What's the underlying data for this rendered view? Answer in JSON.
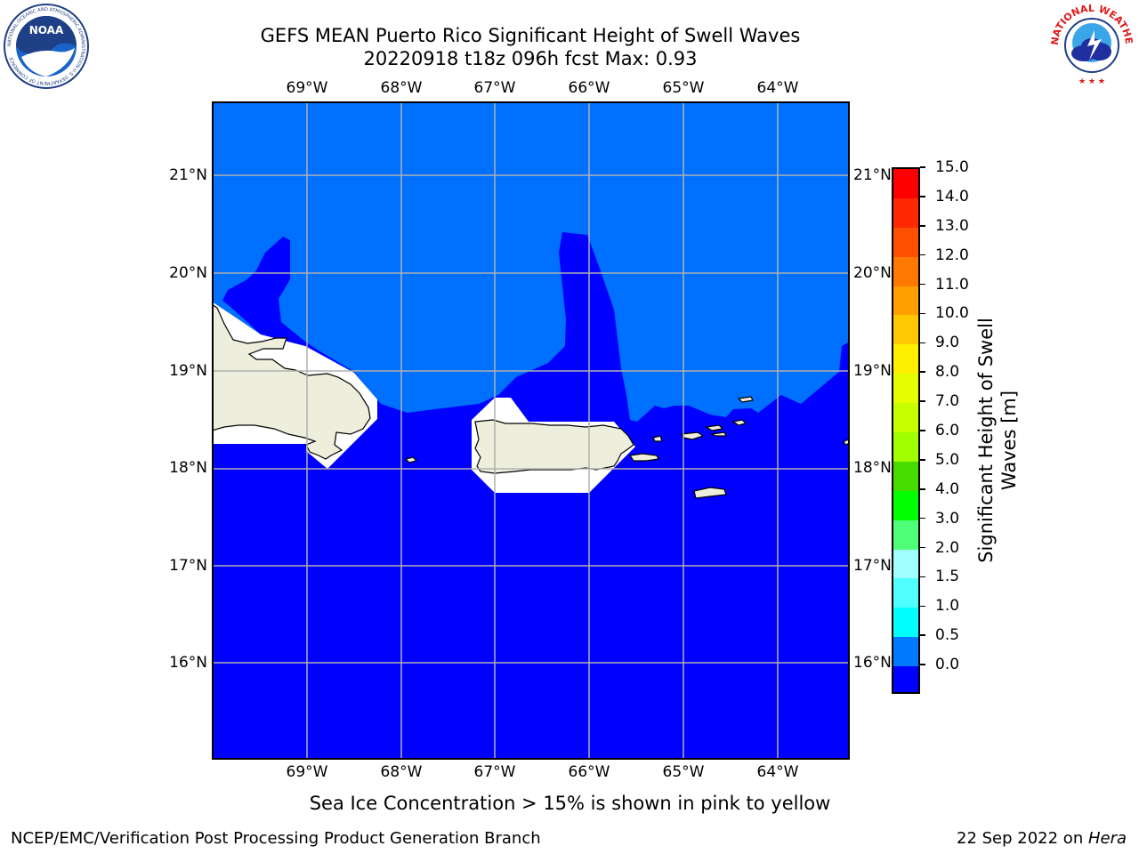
{
  "header": {
    "title_line1": "GEFS MEAN Puerto Rico Significant Height of Swell Waves",
    "title_line2": "20220918 t18z 096h fcst   Max: 0.93"
  },
  "logos": {
    "left": {
      "icon": "noaa-logo",
      "text": "NOAA",
      "ring_text": "NATIONAL OCEANIC AND ATMOSPHERIC ADMINISTRATION  U.S. DEPARTMENT OF COMMERCE"
    },
    "right": {
      "icon": "nws-logo",
      "ring_text": "NATIONAL WEATHER SERVICE"
    }
  },
  "map": {
    "lon_ticks": [
      "69°W",
      "68°W",
      "67°W",
      "66°W",
      "65°W",
      "64°W"
    ],
    "lat_ticks": [
      "21°N",
      "20°N",
      "19°N",
      "18°N",
      "17°N",
      "16°N"
    ],
    "colors": {
      "deep_blue": "#0000ff",
      "light_blue": "#0070ff",
      "land": "#eeeedc",
      "grid": "#b0b0b0"
    }
  },
  "colorbar": {
    "label": "Significant Height of Swell Waves [m]",
    "label_line1": "Significant Height of Swell",
    "label_line2": "Waves [m]",
    "ticks": [
      "15.0",
      "14.0",
      "13.0",
      "12.0",
      "11.0",
      "10.0",
      "9.0",
      "8.0",
      "7.0",
      "6.0",
      "5.0",
      "4.0",
      "3.0",
      "2.0",
      "1.5",
      "1.0",
      "0.5",
      "0.0"
    ],
    "colors_top_to_bottom": [
      "#ff0000",
      "#ff2800",
      "#ff5000",
      "#ff7800",
      "#ffa000",
      "#ffc800",
      "#fff000",
      "#e6ff00",
      "#c8ff00",
      "#a0ff00",
      "#46dc00",
      "#00ff00",
      "#50ff78",
      "#a0ffff",
      "#50ffff",
      "#00ffff",
      "#0078ff",
      "#0000ff"
    ]
  },
  "notes": {
    "sea_ice": "Sea Ice Concentration > 15% is shown in pink to yellow"
  },
  "footer": {
    "left": "NCEP/EMC/Verification Post Processing Product Generation Branch",
    "right_prefix": "22 Sep 2022 on ",
    "right_italic": "Hera"
  }
}
